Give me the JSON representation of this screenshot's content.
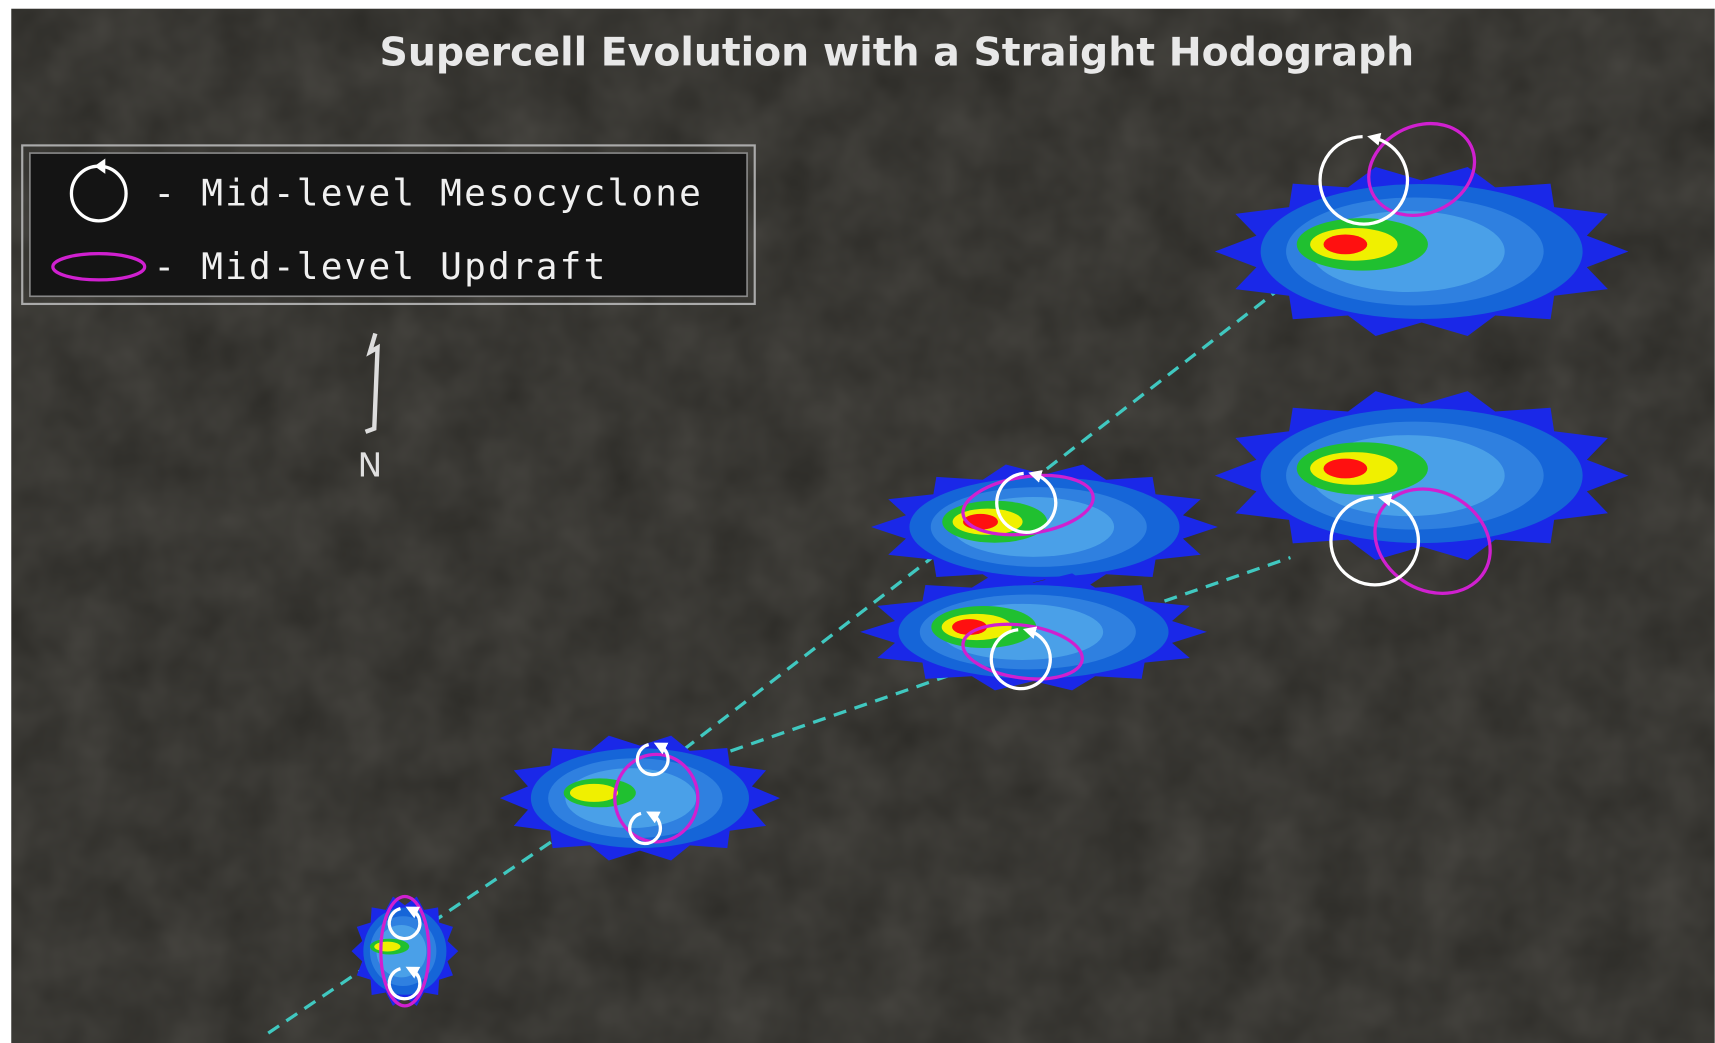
{
  "title": "Supercell Evolution with a Straight Hodograph",
  "legend": {
    "items": [
      {
        "label": "- Mid-level Mesocyclone"
      },
      {
        "label": "- Mid-level Updraft"
      }
    ]
  },
  "north_label": "N"
}
